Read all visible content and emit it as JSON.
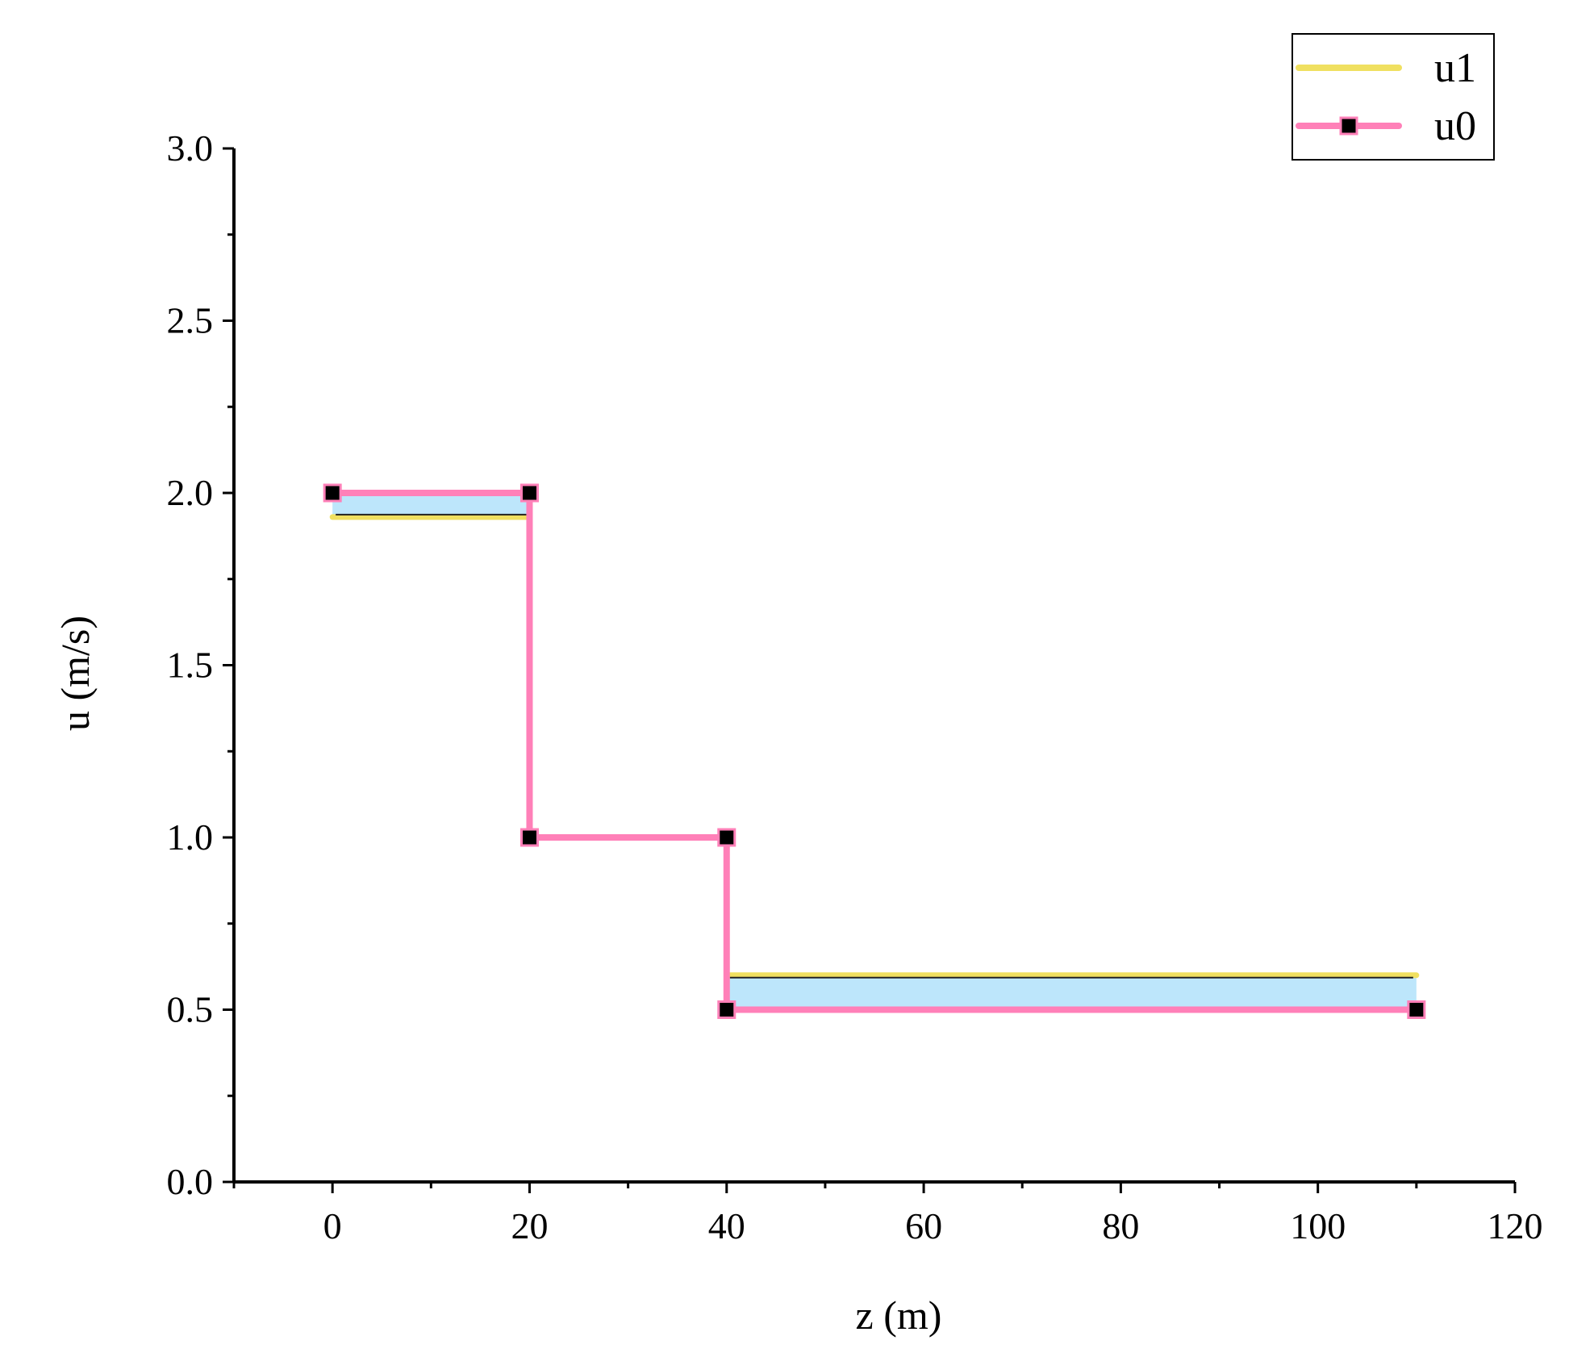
{
  "chart_data": {
    "type": "line",
    "xlabel": "z (m)",
    "ylabel": "u (m/s)",
    "xlim": [
      -10,
      120
    ],
    "ylim": [
      0,
      3.0
    ],
    "x_ticks": [
      0,
      20,
      40,
      60,
      80,
      100,
      120
    ],
    "y_ticks": [
      0.0,
      0.5,
      1.0,
      1.5,
      2.0,
      2.5,
      3.0
    ],
    "x_tick_labels": [
      "0",
      "20",
      "40",
      "60",
      "80",
      "100",
      "120"
    ],
    "y_tick_labels": [
      "0.0",
      "0.5",
      "1.0",
      "1.5",
      "2.0",
      "2.5",
      "3.0"
    ],
    "grid": false,
    "legend_position": "top-right",
    "series": [
      {
        "name": "u1",
        "color": "#f0e060",
        "marker": "none",
        "x": [
          0,
          20,
          20,
          40,
          40,
          110
        ],
        "y": [
          1.93,
          1.93,
          1.0,
          1.0,
          0.6,
          0.6
        ]
      },
      {
        "name": "u0",
        "color": "#ff80b8",
        "marker": "square",
        "marker_color": "#000000",
        "x": [
          0,
          20,
          20,
          40,
          40,
          110
        ],
        "y": [
          2.0,
          2.0,
          1.0,
          1.0,
          0.5,
          0.5
        ]
      }
    ],
    "fill_between": {
      "between": [
        "u1",
        "u0"
      ],
      "color": "#bde6fb"
    }
  }
}
